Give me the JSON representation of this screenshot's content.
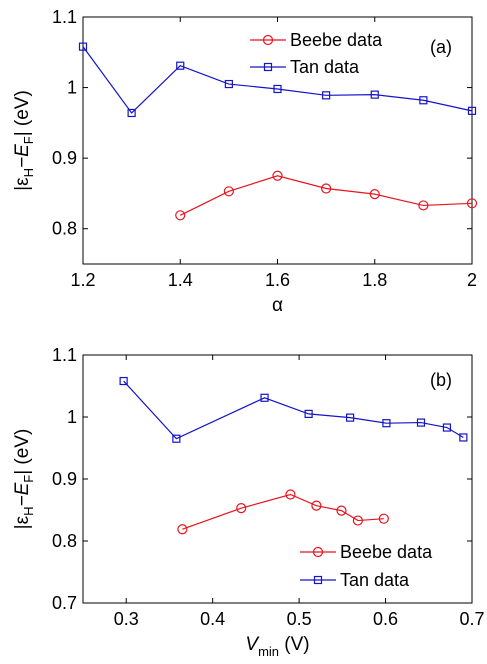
{
  "chart_data": [
    {
      "type": "line",
      "panel_label": "(a)",
      "xlabel": "α",
      "ylabel_parts": {
        "open": "|ε",
        "sub1": "H",
        "mid": "−E",
        "sub2": "F",
        "close": "| (eV)"
      },
      "xlim": [
        1.2,
        2.0
      ],
      "ylim": [
        0.75,
        1.1
      ],
      "xticks": [
        "1.2",
        "1.4",
        "1.6",
        "1.8",
        "2"
      ],
      "yticks": [
        "0.8",
        "0.9",
        "1",
        "1.1"
      ],
      "legend_position": "top-right",
      "series": [
        {
          "name": "Beebe data",
          "color": "#e8141e",
          "marker": "circle",
          "x": [
            1.4,
            1.5,
            1.6,
            1.7,
            1.8,
            1.9,
            2.0
          ],
          "y": [
            0.819,
            0.853,
            0.875,
            0.857,
            0.849,
            0.833,
            0.836
          ]
        },
        {
          "name": "Tan data",
          "color": "#1414c8",
          "marker": "square",
          "x": [
            1.2,
            1.3,
            1.4,
            1.5,
            1.6,
            1.7,
            1.8,
            1.9,
            2.0
          ],
          "y": [
            1.058,
            0.964,
            1.031,
            1.005,
            0.998,
            0.989,
            0.99,
            0.982,
            0.967
          ]
        }
      ]
    },
    {
      "type": "line",
      "panel_label": "(b)",
      "xlabel_parts": {
        "main": "V",
        "sub": "min",
        "unit": " (V)"
      },
      "ylabel_parts": {
        "open": "|ε",
        "sub1": "H",
        "mid": "−E",
        "sub2": "F",
        "close": "| (eV)"
      },
      "xlim": [
        0.25,
        0.7
      ],
      "ylim": [
        0.7,
        1.1
      ],
      "xticks": [
        "0.3",
        "0.4",
        "0.5",
        "0.6",
        "0.7"
      ],
      "yticks": [
        "0.7",
        "0.8",
        "0.9",
        "1",
        "1.1"
      ],
      "legend_position": "bottom-right",
      "series": [
        {
          "name": "Beebe data",
          "color": "#e8141e",
          "marker": "circle",
          "x": [
            0.365,
            0.433,
            0.49,
            0.52,
            0.549,
            0.568,
            0.598
          ],
          "y": [
            0.819,
            0.853,
            0.875,
            0.857,
            0.849,
            0.833,
            0.836
          ]
        },
        {
          "name": "Tan data",
          "color": "#1414c8",
          "marker": "square",
          "x": [
            0.297,
            0.358,
            0.46,
            0.511,
            0.559,
            0.601,
            0.641,
            0.671,
            0.69
          ],
          "y": [
            1.058,
            0.965,
            1.031,
            1.005,
            0.999,
            0.99,
            0.991,
            0.983,
            0.967
          ]
        }
      ]
    }
  ]
}
